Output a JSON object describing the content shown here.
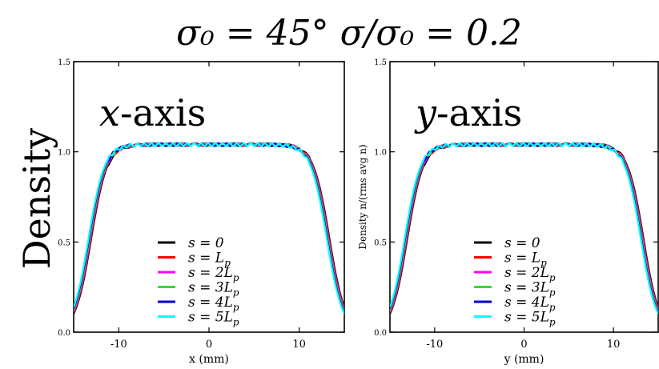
{
  "title": "σ₀ = 45°   σ/σ₀ = 0.2",
  "left_ylabel": "Density",
  "chart_data": [
    {
      "type": "line",
      "panel_label": "x-axis",
      "panel_label_italic": "x",
      "panel_label_rest": "-axis",
      "xlabel": "x (mm)",
      "ylabel": "",
      "xlim": [
        -15,
        15
      ],
      "ylim": [
        0,
        1.5
      ],
      "xticks": [
        -10,
        0,
        10
      ],
      "xticklabels": [
        "-10",
        "0",
        "10"
      ],
      "yticks": [
        0,
        0.5,
        1.0,
        1.5
      ],
      "yticklabels": [
        "0.0",
        "0.5",
        "1.0",
        "1.5"
      ],
      "legend_position": "bottom-center",
      "profile": {
        "plateau": 1.04,
        "half_width": 13.2,
        "edge_width": 1.6
      },
      "series": [
        {
          "name": "s = 0",
          "color": "#000000"
        },
        {
          "name": "s = L_p",
          "color": "#ff0000"
        },
        {
          "name": "s = 2L_p",
          "color": "#ff00ff"
        },
        {
          "name": "s = 3L_p",
          "color": "#33dd33"
        },
        {
          "name": "s = 4L_p",
          "color": "#0000cc"
        },
        {
          "name": "s = 5L_p",
          "color": "#00ffff"
        }
      ]
    },
    {
      "type": "line",
      "panel_label": "y-axis",
      "panel_label_italic": "y",
      "panel_label_rest": "-axis",
      "xlabel": "y (mm)",
      "ylabel": "Density n/(rms avg n)",
      "xlim": [
        -15,
        15
      ],
      "ylim": [
        0,
        1.5
      ],
      "xticks": [
        -10,
        0,
        10
      ],
      "xticklabels": [
        "-10",
        "0",
        "10"
      ],
      "yticks": [
        0,
        0.5,
        1.0,
        1.5
      ],
      "yticklabels": [
        "0.0",
        "0.5",
        "1.0",
        "1.5"
      ],
      "legend_position": "bottom-center",
      "profile": {
        "plateau": 1.04,
        "half_width": 13.2,
        "edge_width": 1.6
      },
      "series": [
        {
          "name": "s = 0",
          "color": "#000000"
        },
        {
          "name": "s = L_p",
          "color": "#ff0000"
        },
        {
          "name": "s = 2L_p",
          "color": "#ff00ff"
        },
        {
          "name": "s = 3L_p",
          "color": "#33dd33"
        },
        {
          "name": "s = 4L_p",
          "color": "#0000cc"
        },
        {
          "name": "s = 5L_p",
          "color": "#00ffff"
        }
      ]
    }
  ]
}
